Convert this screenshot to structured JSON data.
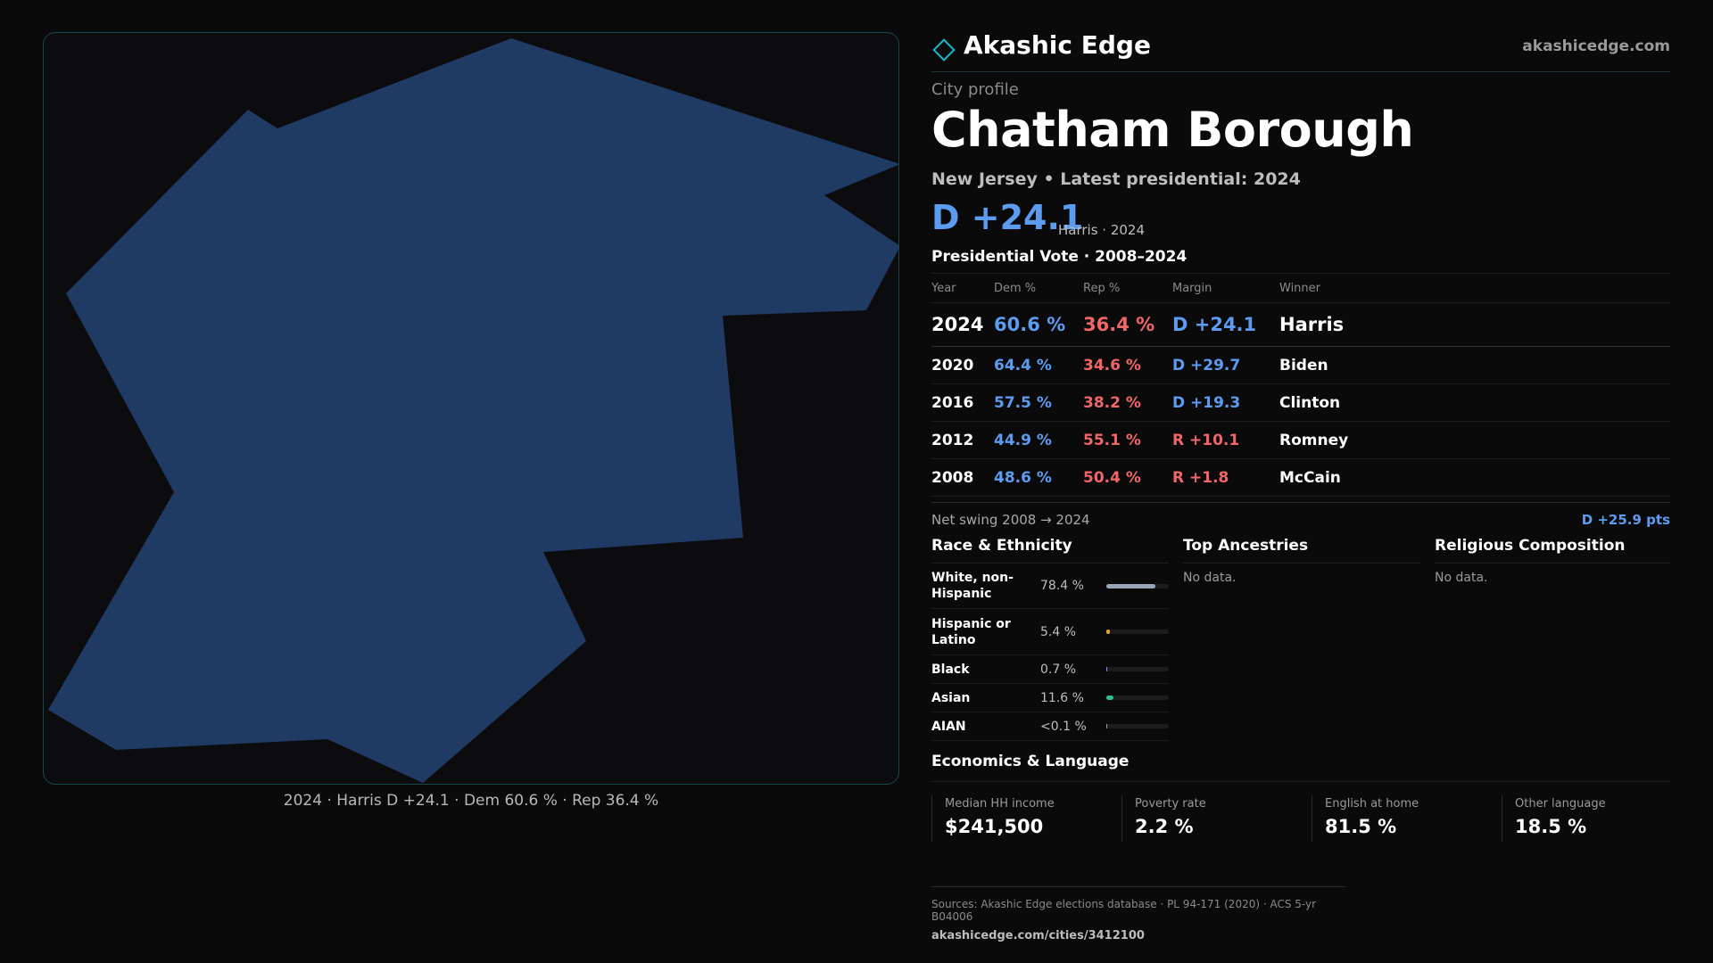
{
  "brand": {
    "name": "Akashic Edge",
    "url": "akashicedge.com",
    "accent": "#14b8c8"
  },
  "profile": {
    "kicker": "City profile",
    "city": "Chatham Borough",
    "subtitle": "New Jersey • Latest presidential: 2024",
    "headline_margin": "D +24.1",
    "headline_note": "Harris · 2024"
  },
  "map": {
    "fill": "#1f3a63",
    "caption": "2024 · Harris D +24.1 · Dem 60.6 % · Rep 36.4 %"
  },
  "presidential": {
    "title": "Presidential Vote · 2008–2024",
    "columns": [
      "Year",
      "Dem %",
      "Rep %",
      "Margin",
      "Winner"
    ],
    "rows": [
      {
        "year": "2024",
        "dem": "60.6 %",
        "rep": "36.4 %",
        "margin": "D +24.1",
        "party": "dem",
        "winner": "Harris"
      },
      {
        "year": "2020",
        "dem": "64.4 %",
        "rep": "34.6 %",
        "margin": "D +29.7",
        "party": "dem",
        "winner": "Biden"
      },
      {
        "year": "2016",
        "dem": "57.5 %",
        "rep": "38.2 %",
        "margin": "D +19.3",
        "party": "dem",
        "winner": "Clinton"
      },
      {
        "year": "2012",
        "dem": "44.9 %",
        "rep": "55.1 %",
        "margin": "R +10.1",
        "party": "rep",
        "winner": "Romney"
      },
      {
        "year": "2008",
        "dem": "48.6 %",
        "rep": "50.4 %",
        "margin": "R +1.8",
        "party": "rep",
        "winner": "McCain"
      }
    ],
    "swing_label": "Net swing 2008 → 2024",
    "swing_value": "D +25.9 pts"
  },
  "race": {
    "title": "Race & Ethnicity",
    "items": [
      {
        "label": "White, non-Hispanic",
        "value": "78.4 %",
        "share": 0.784,
        "color": "#9aa4b8"
      },
      {
        "label": "Hispanic or Latino",
        "value": "5.4 %",
        "share": 0.054,
        "color": "#e8a23a"
      },
      {
        "label": "Black",
        "value": "0.7 %",
        "share": 0.007,
        "color": "#a78bfa"
      },
      {
        "label": "Asian",
        "value": "11.6 %",
        "share": 0.116,
        "color": "#2fbf8f"
      },
      {
        "label": "AIAN",
        "value": "<0.1 %",
        "share": 0.0,
        "color": "#9aa4b8"
      }
    ]
  },
  "ancestries": {
    "title": "Top Ancestries",
    "empty": "No data."
  },
  "religion": {
    "title": "Religious Composition",
    "empty": "No data."
  },
  "economics": {
    "title": "Economics & Language",
    "stats": [
      {
        "label": "Median HH income",
        "value": "$241,500"
      },
      {
        "label": "Poverty rate",
        "value": "2.2 %"
      },
      {
        "label": "English at home",
        "value": "81.5 %"
      },
      {
        "label": "Other language",
        "value": "18.5 %"
      }
    ]
  },
  "footer": {
    "sources": "Sources: Akashic Edge elections database · PL 94-171 (2020) · ACS 5-yr B04006",
    "url": "akashicedge.com/cities/3412100"
  }
}
